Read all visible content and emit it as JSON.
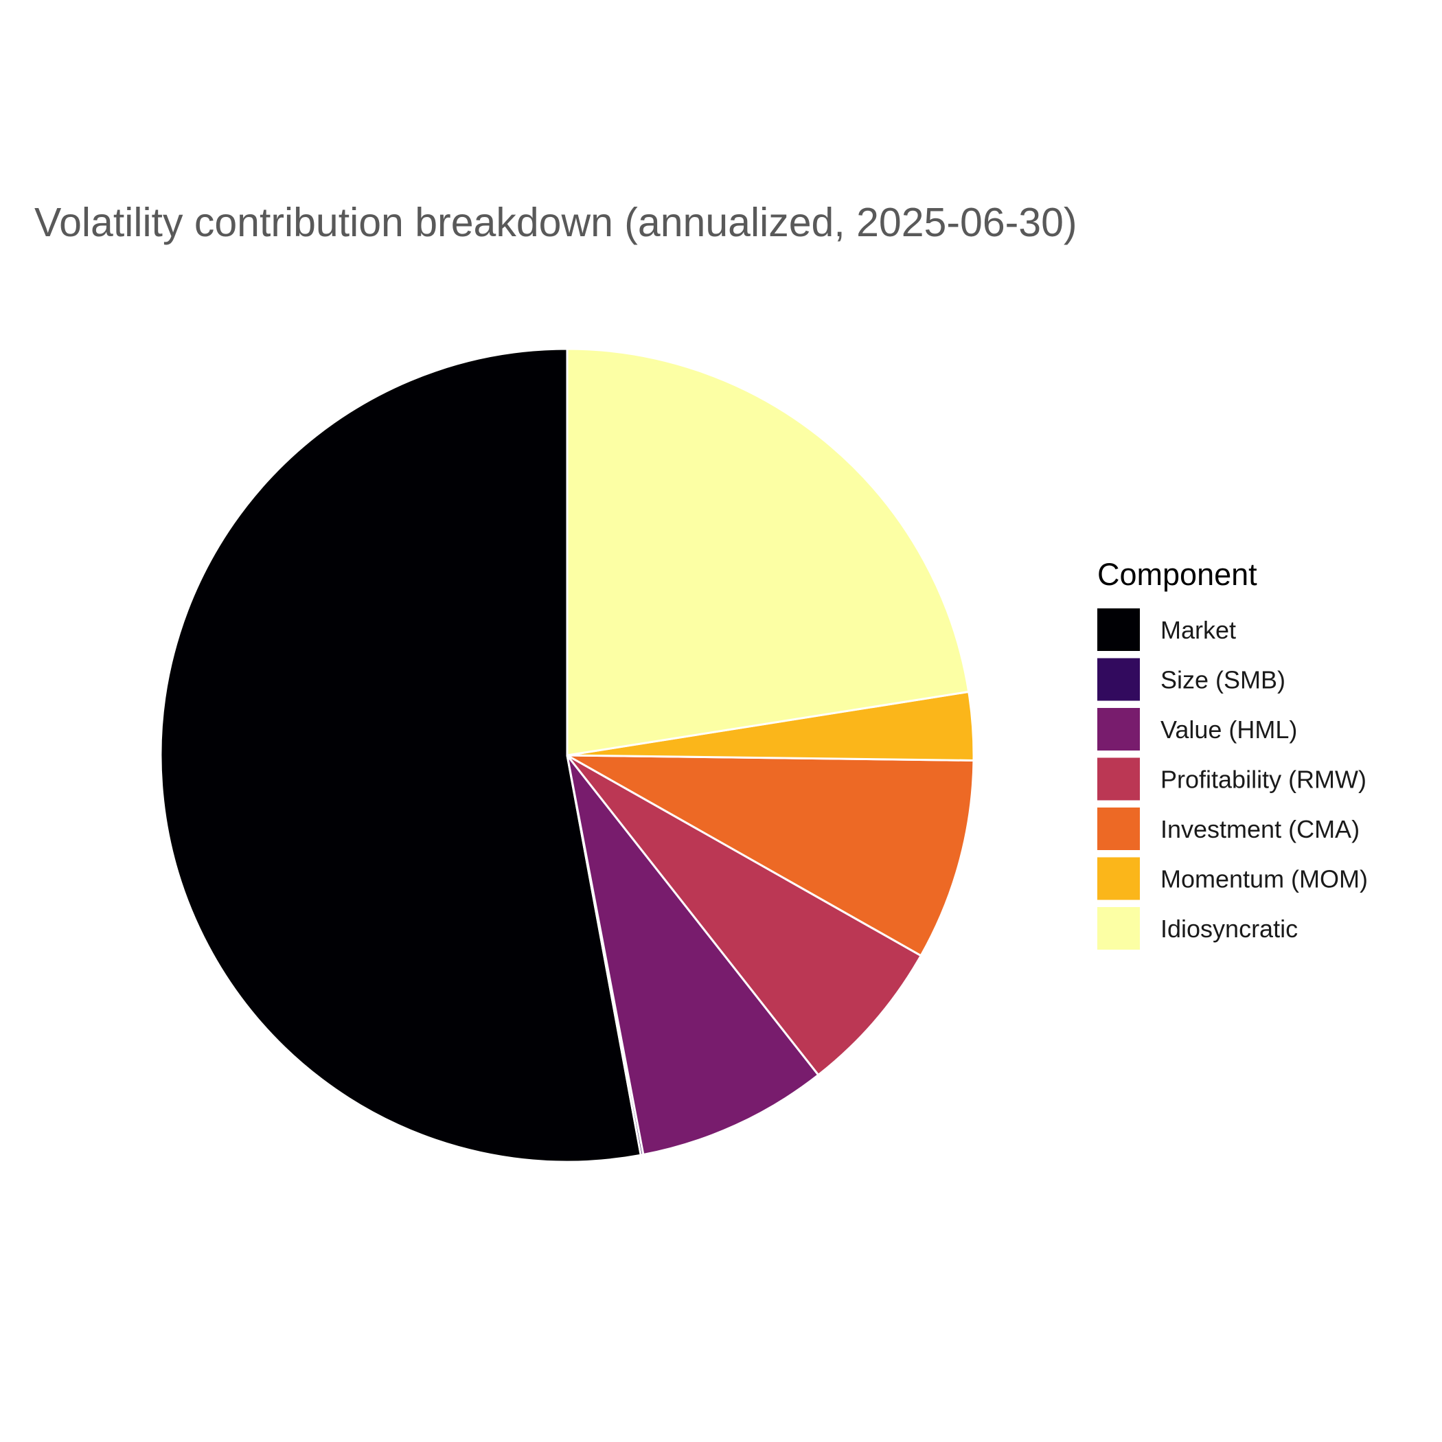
{
  "chart_data": {
    "type": "pie",
    "title": "Volatility contribution breakdown (annualized, 2025-06-30)",
    "legend_title": "Component",
    "legend_position": "right",
    "start_angle": "12 o'clock",
    "direction": "counterclockwise",
    "slice_border_color": "#ffffff",
    "series": [
      {
        "name": "Market",
        "value": 52.9,
        "color": "#000004"
      },
      {
        "name": "Size (SMB)",
        "value": 0.1,
        "color": "#320A5E"
      },
      {
        "name": "Value (HML)",
        "value": 7.6,
        "color": "#781C6D"
      },
      {
        "name": "Profitability (RMW)",
        "value": 6.2,
        "color": "#BB3754"
      },
      {
        "name": "Investment (CMA)",
        "value": 8.0,
        "color": "#ED6925"
      },
      {
        "name": "Momentum (MOM)",
        "value": 2.7,
        "color": "#FBB61A"
      },
      {
        "name": "Idiosyncratic",
        "value": 22.5,
        "color": "#FCFFA4"
      }
    ]
  }
}
